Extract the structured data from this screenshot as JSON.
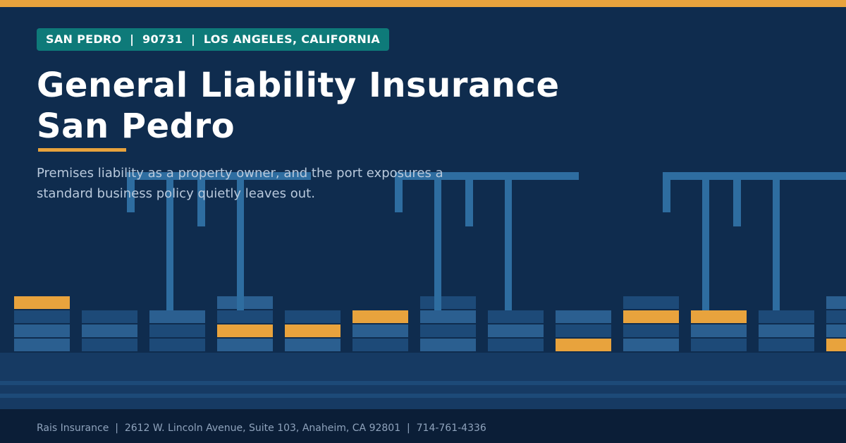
{
  "colors": {
    "background": "#0f2c4e",
    "accent": "#e8a33d",
    "tag_background": "#0e7a79",
    "crane": "#2e6da0",
    "container_light": "#2b5f90",
    "container_dark": "#1d4a78",
    "dock": "#163a63",
    "footer_background": "#0b1e37"
  },
  "location_tag": "SAN PEDRO  |  90731  |  LOS ANGELES, CALIFORNIA",
  "title": {
    "line1": "General Liability Insurance",
    "line2": "San Pedro"
  },
  "subtitle": {
    "line1": "Premises liability as a property owner, and the port exposures a",
    "line2": "standard business policy quietly leaves out."
  },
  "illustration": {
    "cranes": 3,
    "container_stacks": [
      [
        "light",
        "light",
        "dark",
        "accent"
      ],
      [
        "dark",
        "light",
        "dark"
      ],
      [
        "dark",
        "dark",
        "light"
      ],
      [
        "light",
        "accent",
        "dark",
        "light"
      ],
      [
        "light",
        "accent",
        "dark"
      ],
      [
        "dark",
        "light",
        "accent"
      ],
      [
        "light",
        "dark",
        "light",
        "dark"
      ],
      [
        "dark",
        "light",
        "dark"
      ],
      [
        "accent",
        "dark",
        "light"
      ],
      [
        "light",
        "dark",
        "accent",
        "dark"
      ],
      [
        "dark",
        "light",
        "accent"
      ],
      [
        "dark",
        "light",
        "dark"
      ],
      [
        "accent",
        "light",
        "dark",
        "light"
      ]
    ]
  },
  "footer": "Rais Insurance  |  2612 W. Lincoln Avenue, Suite 103, Anaheim, CA 92801  |  714-761-4336"
}
